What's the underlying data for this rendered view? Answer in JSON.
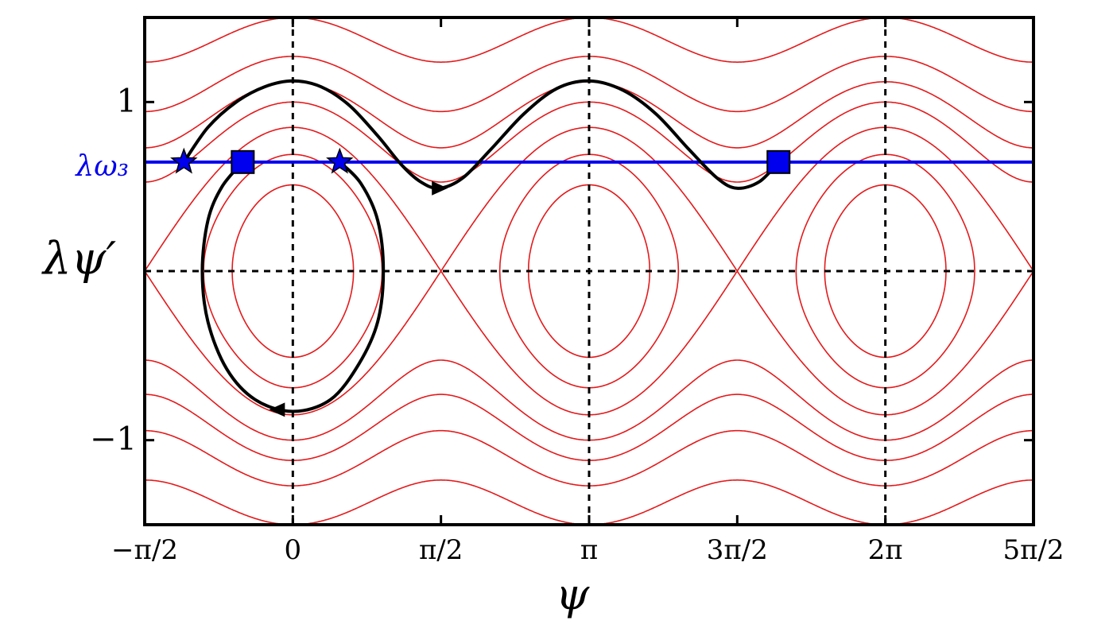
{
  "chart_data": {
    "type": "phase-portrait",
    "x_label": "ψ",
    "y_label": "λψ′",
    "xlim": [
      -1.5708,
      7.854
    ],
    "ylim": [
      -1.5,
      1.5
    ],
    "xticks": [
      {
        "value": -1.5708,
        "label": "−π/2"
      },
      0,
      {
        "value": 1.5708,
        "label": "π/2"
      },
      {
        "value": 3.1416,
        "label": "π"
      },
      {
        "value": 4.7124,
        "label": "3π/2"
      },
      {
        "value": 6.2832,
        "label": "2π"
      },
      {
        "value": 7.854,
        "label": "5π/2"
      }
    ],
    "yticks": [
      {
        "value": -1,
        "label": "−1"
      },
      1
    ],
    "vlines": [
      0,
      3.1416,
      6.2832
    ],
    "hlines": [
      0
    ],
    "contours": {
      "color": "#e41a1c",
      "amplitude": 0.85,
      "levels": [
        0.51,
        0.69,
        0.85,
        1.0,
        1.12,
        1.27,
        1.5
      ]
    },
    "level_line": {
      "label": "λω₃",
      "value": 0.645,
      "color": "#0000ee"
    },
    "series": [
      {
        "color": "#000000",
        "x": [
          -1.155,
          -0.9,
          -0.6,
          -0.3,
          0,
          0.3,
          0.6,
          0.9,
          1.15,
          1.35,
          1.55,
          1.8,
          2.1,
          2.45,
          2.8,
          3.1416,
          3.5,
          3.85,
          4.2,
          4.5,
          4.71,
          4.95,
          5.15
        ],
        "values": [
          0.645,
          0.85,
          1.0,
          1.09,
          1.125,
          1.09,
          0.98,
          0.8,
          0.63,
          0.53,
          0.49,
          0.55,
          0.72,
          0.93,
          1.08,
          1.125,
          1.07,
          0.93,
          0.72,
          0.55,
          0.49,
          0.53,
          0.645
        ]
      },
      {
        "color": "#000000",
        "x": [
          -0.531,
          -0.75,
          -0.9,
          -0.96,
          -0.9,
          -0.7,
          -0.4,
          0,
          0.4,
          0.7,
          0.9,
          0.96,
          0.9,
          0.72,
          0.497
        ],
        "values": [
          0.645,
          0.5,
          0.3,
          0,
          -0.3,
          -0.58,
          -0.76,
          -0.83,
          -0.76,
          -0.55,
          -0.3,
          0,
          0.3,
          0.52,
          0.645
        ]
      }
    ],
    "markers": [
      {
        "shape": "star",
        "color": "#0000ee",
        "x": [
          -1.155,
          0.497
        ],
        "values": [
          0.645,
          0.645
        ]
      },
      {
        "shape": "square",
        "color": "#0000ee",
        "x": [
          -0.531,
          5.15
        ],
        "values": [
          0.645,
          0.645
        ]
      },
      {
        "shape": "arrow-right",
        "color": "#000000",
        "x": [
          1.55
        ],
        "values": [
          0.49
        ]
      },
      {
        "shape": "arrow-left",
        "color": "#000000",
        "x": [
          -0.16
        ],
        "values": [
          -0.82
        ]
      }
    ]
  }
}
